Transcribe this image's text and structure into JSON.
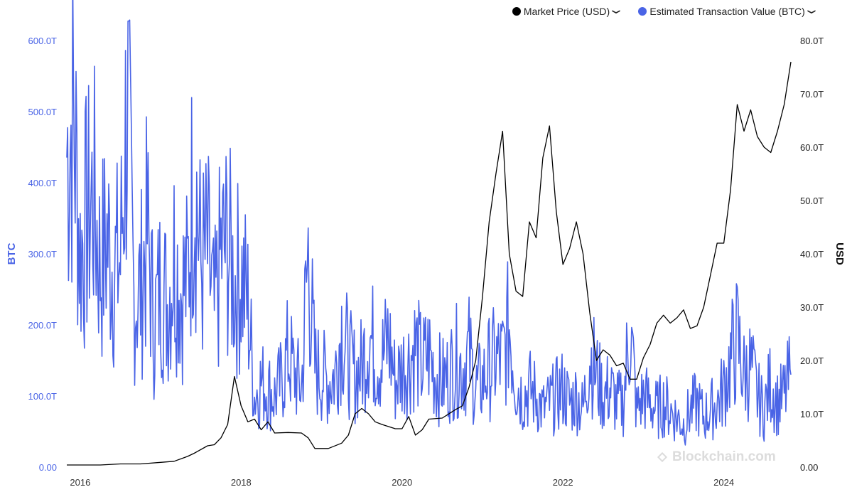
{
  "legend": {
    "items": [
      {
        "label": "Market Price (USD)",
        "color": "#000000",
        "icon": "chevron-down-icon"
      },
      {
        "label": "Estimated Transaction Value (BTC)",
        "color": "#4a64e6",
        "icon": "chevron-down-icon"
      }
    ]
  },
  "watermark": "Blockchain.com",
  "chart_data": {
    "type": "line",
    "x_ticks": [
      "2016",
      "2018",
      "2020",
      "2022",
      "2024"
    ],
    "x_range": [
      "2015-11",
      "2024-11"
    ],
    "left_axis": {
      "label": "BTC",
      "ticks": [
        "0.00",
        "100.0T",
        "200.0T",
        "300.0T",
        "400.0T",
        "500.0T",
        "600.0T"
      ],
      "range": [
        0,
        600
      ]
    },
    "right_axis": {
      "label": "USD",
      "ticks": [
        "0.00",
        "10.0T",
        "20.0T",
        "30.0T",
        "40.0T",
        "50.0T",
        "60.0T",
        "70.0T",
        "80.0T"
      ],
      "range": [
        0,
        80
      ]
    },
    "series": [
      {
        "name": "Estimated Transaction Value (BTC)",
        "axis": "left",
        "color": "#4a64e6",
        "x": [
          "2015-11",
          "2015-12",
          "2016-01",
          "2016-02",
          "2016-03",
          "2016-04",
          "2016-05",
          "2016-06",
          "2016-07",
          "2016-08",
          "2016-09",
          "2016-10",
          "2016-11",
          "2016-12",
          "2017-01",
          "2017-02",
          "2017-03",
          "2017-04",
          "2017-05",
          "2017-06",
          "2017-07",
          "2017-08",
          "2017-09",
          "2017-10",
          "2017-11",
          "2017-12",
          "2018-01",
          "2018-02",
          "2018-03",
          "2018-04",
          "2018-05",
          "2018-06",
          "2018-07",
          "2018-08",
          "2018-09",
          "2018-10",
          "2018-11",
          "2018-12",
          "2019-01",
          "2019-02",
          "2019-03",
          "2019-04",
          "2019-05",
          "2019-06",
          "2019-07",
          "2019-08",
          "2019-09",
          "2019-10",
          "2019-11",
          "2019-12",
          "2020-01",
          "2020-02",
          "2020-03",
          "2020-04",
          "2020-05",
          "2020-06",
          "2020-07",
          "2020-08",
          "2020-09",
          "2020-10",
          "2020-11",
          "2020-12",
          "2021-01",
          "2021-02",
          "2021-03",
          "2021-04",
          "2021-05",
          "2021-06",
          "2021-07",
          "2021-08",
          "2021-09",
          "2021-10",
          "2021-11",
          "2021-12",
          "2022-01",
          "2022-02",
          "2022-03",
          "2022-04",
          "2022-05",
          "2022-06",
          "2022-07",
          "2022-08",
          "2022-09",
          "2022-10",
          "2022-11",
          "2022-12",
          "2023-01",
          "2023-02",
          "2023-03",
          "2023-04",
          "2023-05",
          "2023-06",
          "2023-07",
          "2023-08",
          "2023-09",
          "2023-10",
          "2023-11",
          "2023-12",
          "2024-01",
          "2024-02",
          "2024-03",
          "2024-04",
          "2024-05",
          "2024-06",
          "2024-07",
          "2024-08",
          "2024-09",
          "2024-10",
          "2024-11"
        ],
        "y": [
          440,
          500,
          300,
          350,
          380,
          280,
          320,
          280,
          290,
          520,
          240,
          250,
          330,
          200,
          260,
          230,
          300,
          250,
          260,
          430,
          280,
          300,
          210,
          300,
          310,
          260,
          270,
          230,
          100,
          120,
          110,
          100,
          120,
          160,
          130,
          110,
          300,
          140,
          130,
          120,
          130,
          200,
          150,
          130,
          140,
          190,
          160,
          150,
          180,
          120,
          140,
          150,
          170,
          140,
          160,
          130,
          120,
          130,
          150,
          140,
          160,
          110,
          120,
          140,
          150,
          150,
          200,
          120,
          100,
          110,
          100,
          80,
          90,
          100,
          110,
          90,
          100,
          80,
          160,
          130,
          100,
          110,
          90,
          90,
          200,
          80,
          100,
          90,
          80,
          90,
          80,
          70,
          60,
          80,
          90,
          70,
          80,
          90,
          110,
          150,
          180,
          130,
          140,
          100,
          80,
          120,
          90,
          100,
          130
        ]
      },
      {
        "name": "Market Price (USD)",
        "axis": "right",
        "color": "#000000",
        "x": [
          "2015-11",
          "2016-01",
          "2016-04",
          "2016-07",
          "2016-10",
          "2017-01",
          "2017-03",
          "2017-05",
          "2017-06",
          "2017-08",
          "2017-09",
          "2017-10",
          "2017-11",
          "2017-12",
          "2018-01",
          "2018-02",
          "2018-03",
          "2018-04",
          "2018-05",
          "2018-06",
          "2018-08",
          "2018-10",
          "2018-11",
          "2018-12",
          "2019-02",
          "2019-04",
          "2019-05",
          "2019-06",
          "2019-07",
          "2019-08",
          "2019-09",
          "2019-10",
          "2019-12",
          "2020-01",
          "2020-02",
          "2020-03",
          "2020-04",
          "2020-05",
          "2020-07",
          "2020-09",
          "2020-10",
          "2020-11",
          "2020-12",
          "2021-01",
          "2021-02",
          "2021-03",
          "2021-04",
          "2021-05",
          "2021-06",
          "2021-07",
          "2021-08",
          "2021-09",
          "2021-10",
          "2021-11",
          "2021-12",
          "2022-01",
          "2022-02",
          "2022-03",
          "2022-04",
          "2022-05",
          "2022-06",
          "2022-07",
          "2022-08",
          "2022-09",
          "2022-10",
          "2022-11",
          "2022-12",
          "2023-01",
          "2023-02",
          "2023-03",
          "2023-04",
          "2023-05",
          "2023-06",
          "2023-07",
          "2023-08",
          "2023-09",
          "2023-10",
          "2023-11",
          "2023-12",
          "2024-01",
          "2024-02",
          "2024-03",
          "2024-04",
          "2024-05",
          "2024-06",
          "2024-07",
          "2024-08",
          "2024-09",
          "2024-10",
          "2024-11"
        ],
        "y": [
          0.4,
          0.4,
          0.4,
          0.6,
          0.6,
          0.9,
          1.1,
          2.0,
          2.6,
          4.0,
          4.2,
          5.5,
          8.0,
          17.0,
          11.5,
          8.5,
          9.0,
          7.0,
          8.5,
          6.4,
          6.5,
          6.4,
          5.5,
          3.5,
          3.5,
          4.5,
          6.0,
          10.0,
          11.0,
          10.0,
          8.5,
          8.0,
          7.2,
          7.2,
          9.5,
          6.0,
          7.0,
          9.0,
          9.2,
          10.8,
          11.5,
          15.0,
          20.0,
          32.0,
          46.0,
          55.0,
          63.0,
          40.0,
          33.0,
          32.0,
          46.0,
          43.0,
          58.0,
          64.0,
          48.0,
          38.0,
          41.0,
          46.0,
          40.0,
          29.0,
          20.0,
          22.0,
          21.0,
          19.0,
          19.5,
          16.5,
          16.5,
          20.5,
          23.0,
          27.0,
          28.5,
          27.0,
          28.0,
          29.5,
          26.0,
          26.5,
          30.0,
          36.0,
          42.0,
          42.0,
          52.0,
          68.0,
          63.0,
          67.0,
          62.0,
          60.0,
          59.0,
          63.0,
          68.0,
          76.0
        ]
      }
    ],
    "grid": false,
    "legend_position": "top-right"
  }
}
